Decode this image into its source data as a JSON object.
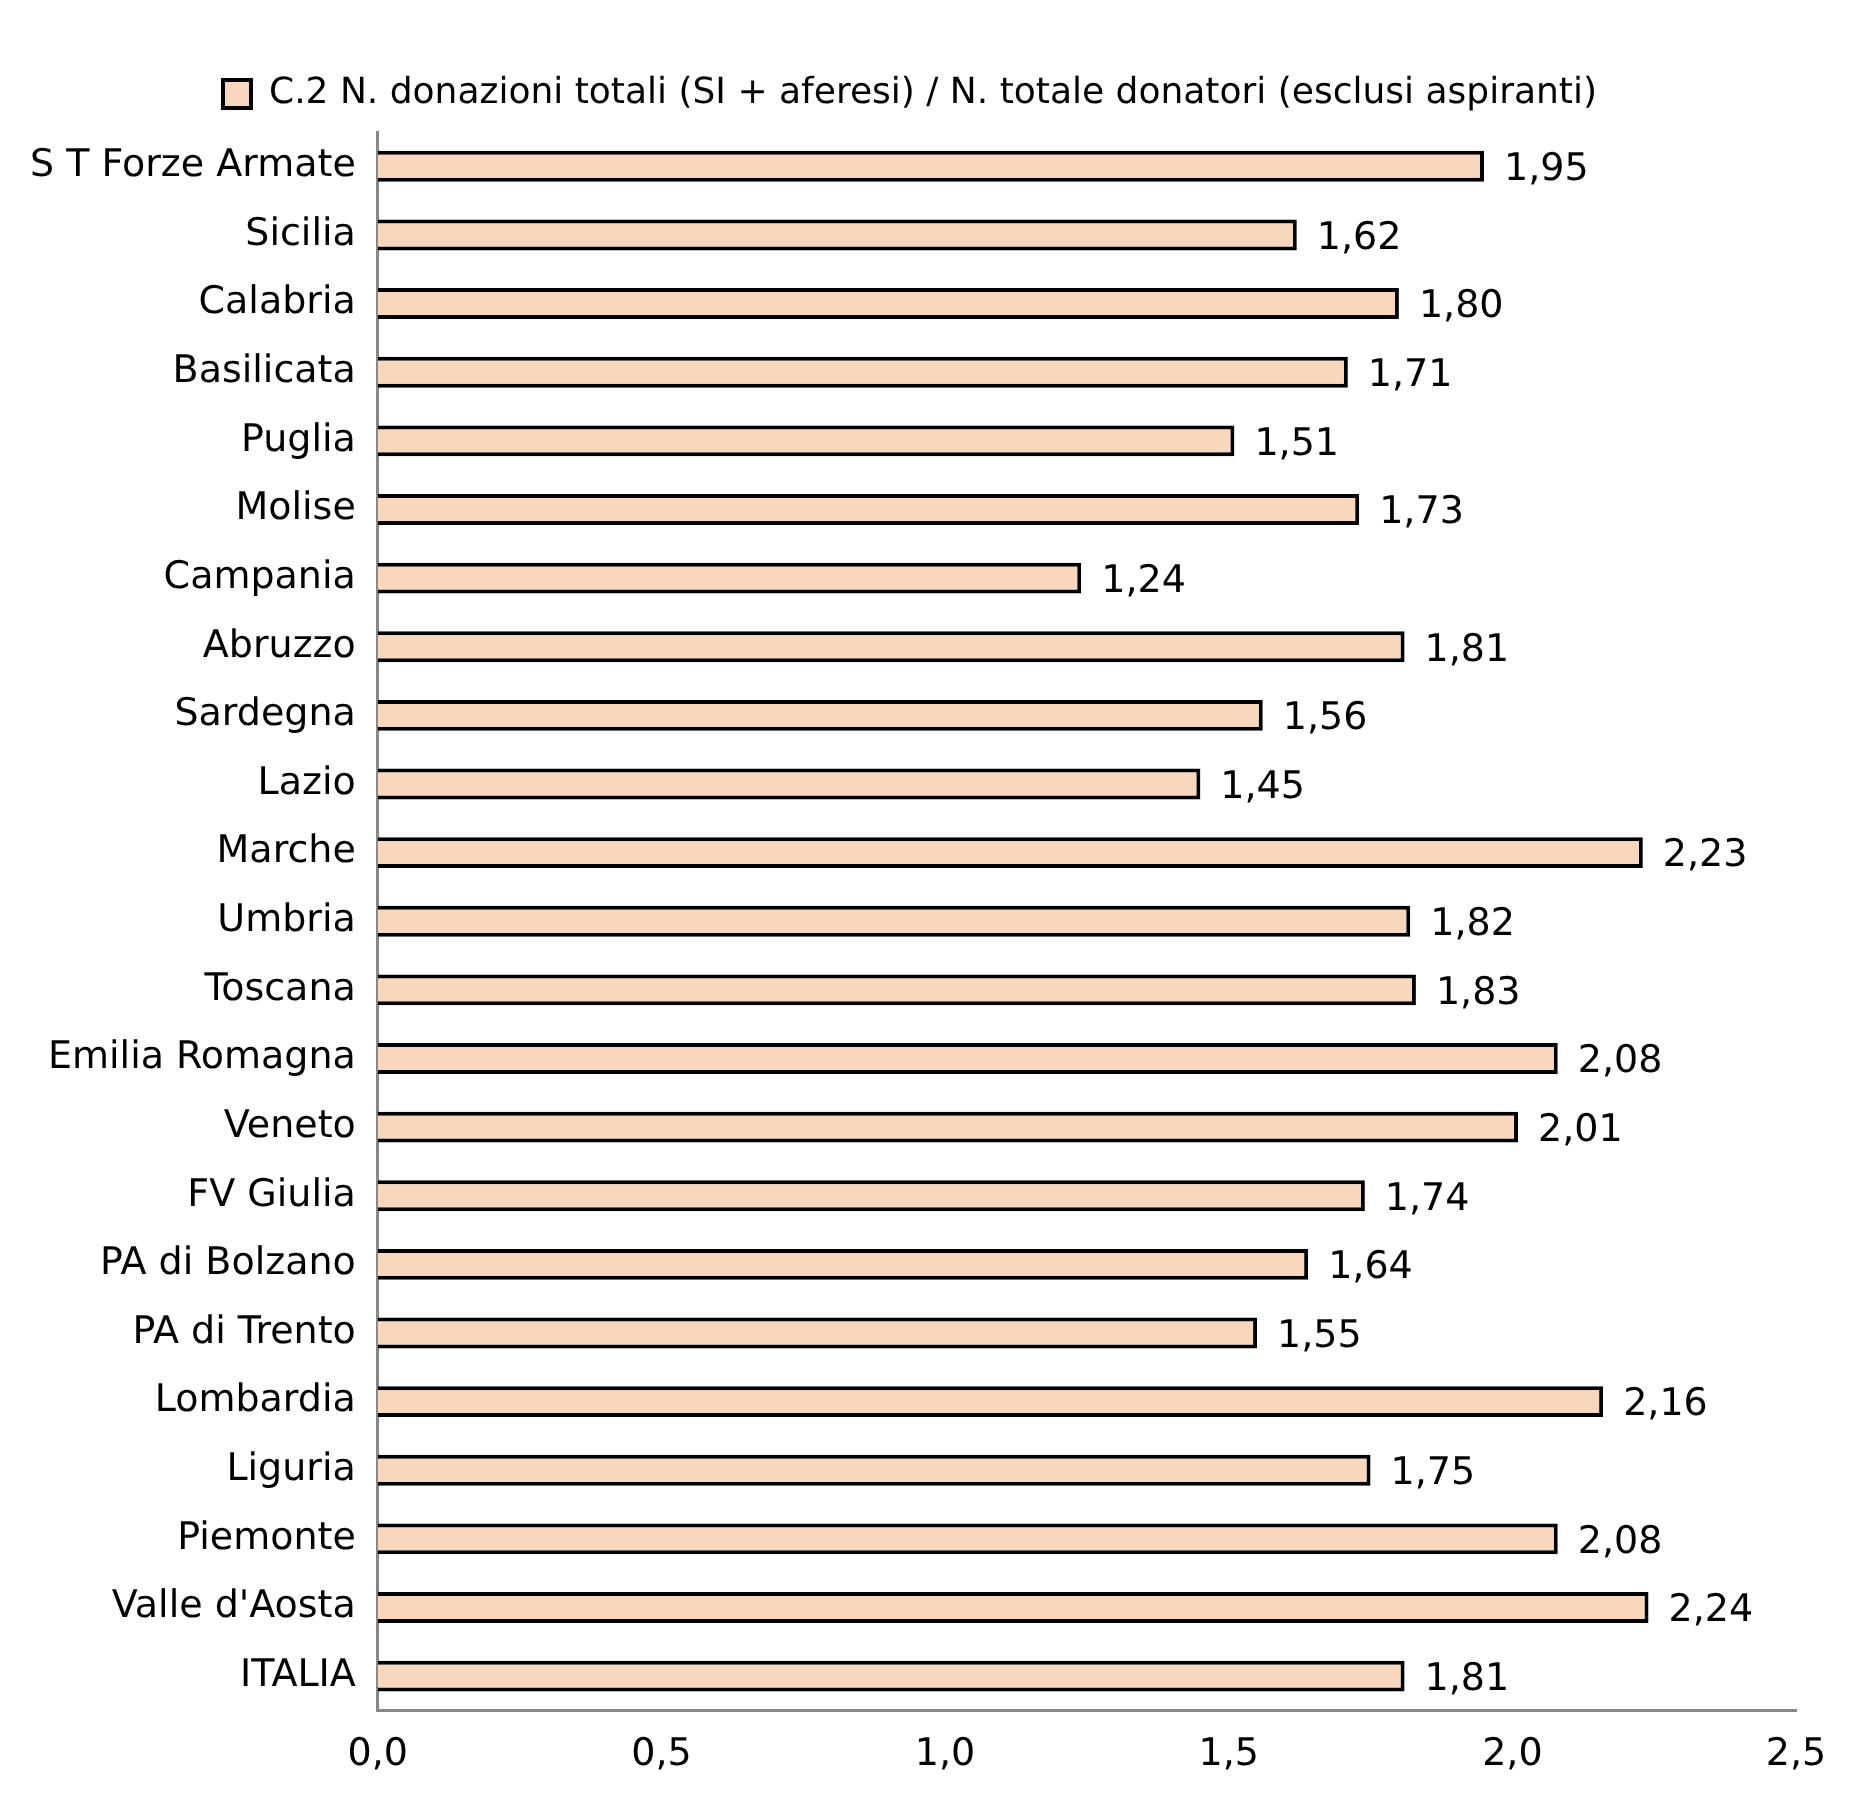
{
  "chart_data": {
    "type": "bar",
    "orientation": "horizontal",
    "legend": "top",
    "grid": false,
    "categories": [
      "S T Forze Armate",
      "Sicilia",
      "Calabria",
      "Basilicata",
      "Puglia",
      "Molise",
      "Campania",
      "Abruzzo",
      "Sardegna",
      "Lazio",
      "Marche",
      "Umbria",
      "Toscana",
      "Emilia Romagna",
      "Veneto",
      "FV Giulia",
      "PA di Bolzano",
      "PA di Trento",
      "Lombardia",
      "Liguria",
      "Piemonte",
      "Valle d'Aosta",
      "ITALIA"
    ],
    "series": [
      {
        "name": "C.2 N. donazioni totali (SI + aferesi) / N. totale donatori (esclusi aspiranti)",
        "color": "#f9d7bd",
        "values": [
          1.95,
          1.62,
          1.8,
          1.71,
          1.51,
          1.73,
          1.24,
          1.81,
          1.56,
          1.45,
          2.23,
          1.82,
          1.83,
          2.08,
          2.01,
          1.74,
          1.64,
          1.55,
          2.16,
          1.75,
          2.08,
          2.24,
          1.81
        ],
        "value_labels": [
          "1,95",
          "1,62",
          "1,80",
          "1,71",
          "1,51",
          "1,73",
          "1,24",
          "1,81",
          "1,56",
          "1,45",
          "2,23",
          "1,82",
          "1,83",
          "2,08",
          "2,01",
          "1,74",
          "1,64",
          "1,55",
          "2,16",
          "1,75",
          "2,08",
          "2,24",
          "1,81"
        ]
      }
    ],
    "xlim": [
      0,
      2.5
    ],
    "xticks": [
      {
        "value": 0,
        "label": "0,0"
      },
      {
        "value": 0.5,
        "label": "0,5"
      },
      {
        "value": 1,
        "label": "1,0"
      },
      {
        "value": 1.5,
        "label": "1,5"
      },
      {
        "value": 2,
        "label": "2,0"
      },
      {
        "value": 2.5,
        "label": "2,5"
      }
    ]
  }
}
